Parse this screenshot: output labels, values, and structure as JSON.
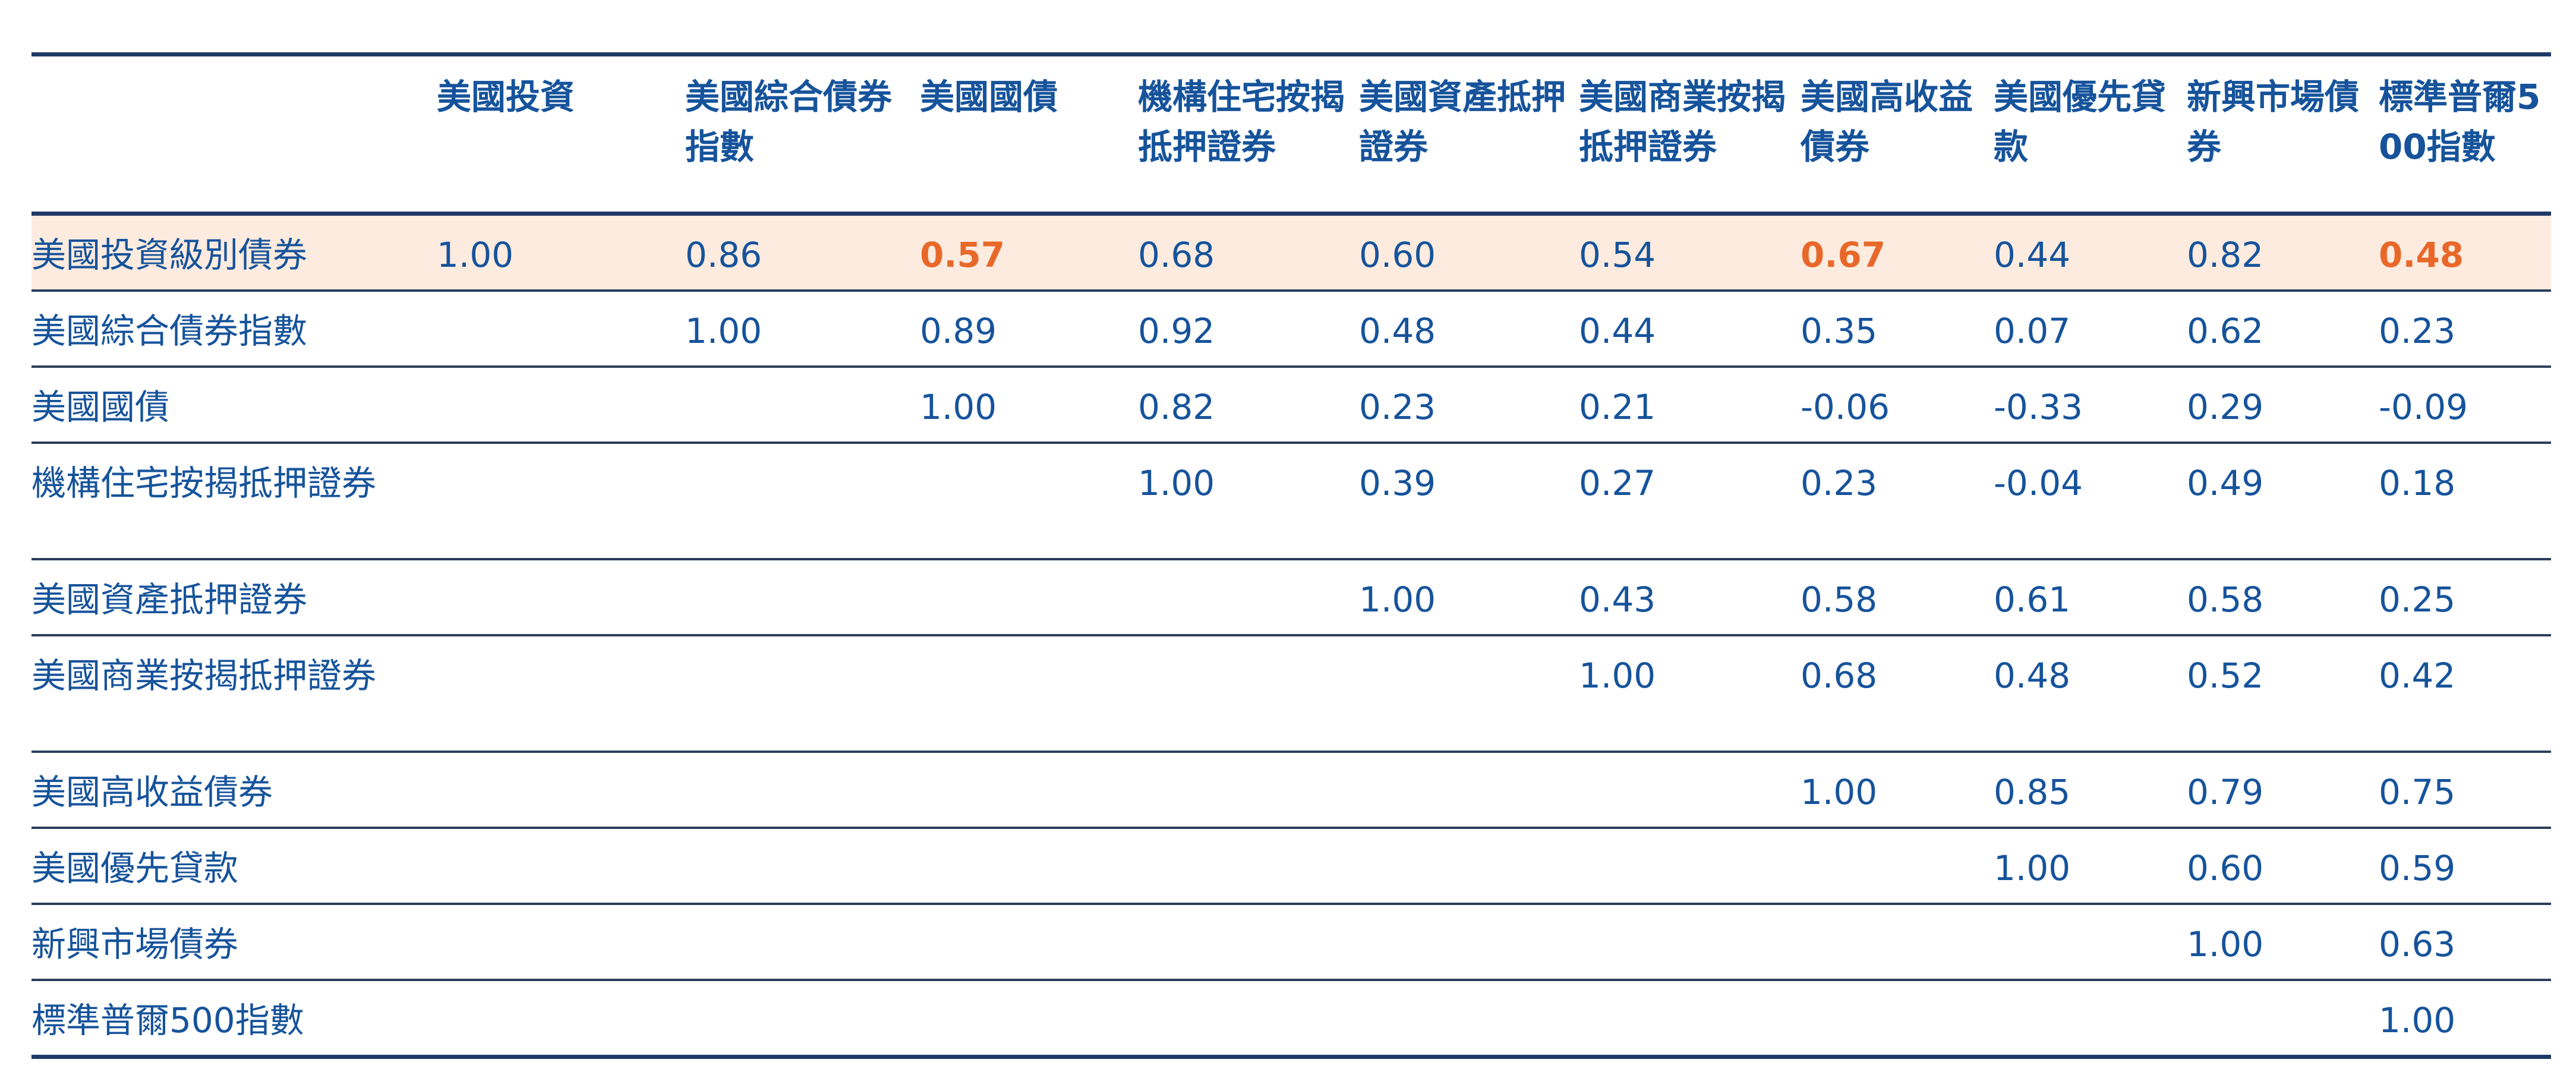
{
  "chart_data": {
    "type": "table",
    "columns": [
      "美國投資",
      "美國綜合債券指數",
      "美國國債",
      "機構住宅按揭抵押證券",
      "美國資產抵押證券",
      "美國商業按揭抵押證券",
      "美國高收益債券",
      "美國優先貸款",
      "新興市場債券",
      "標準普爾500指數"
    ],
    "rows": [
      {
        "label": "美國投資級別債券",
        "cells": [
          "1.00",
          "0.86",
          "0.57",
          "0.68",
          "0.60",
          "0.54",
          "0.67",
          "0.44",
          "0.82",
          "0.48"
        ],
        "highlighted_row": true,
        "accent_cells": [
          2,
          6,
          9
        ]
      },
      {
        "label": "美國綜合債券指數",
        "cells": [
          "",
          "1.00",
          "0.89",
          "0.92",
          "0.48",
          "0.44",
          "0.35",
          "0.07",
          "0.62",
          "0.23"
        ]
      },
      {
        "label": "美國國債",
        "cells": [
          "",
          "",
          "1.00",
          "0.82",
          "0.23",
          "0.21",
          "-0.06",
          "-0.33",
          "0.29",
          "-0.09"
        ]
      },
      {
        "label": "機構住宅按揭抵押證券",
        "cells": [
          "",
          "",
          "",
          "1.00",
          "0.39",
          "0.27",
          "0.23",
          "-0.04",
          "0.49",
          "0.18"
        ]
      },
      {
        "label": "美國資產抵押證券",
        "cells": [
          "",
          "",
          "",
          "",
          "1.00",
          "0.43",
          "0.58",
          "0.61",
          "0.58",
          "0.25"
        ]
      },
      {
        "label": "美國商業按揭抵押證券",
        "cells": [
          "",
          "",
          "",
          "",
          "",
          "1.00",
          "0.68",
          "0.48",
          "0.52",
          "0.42"
        ]
      },
      {
        "label": "美國高收益債券",
        "cells": [
          "",
          "",
          "",
          "",
          "",
          "",
          "1.00",
          "0.85",
          "0.79",
          "0.75"
        ]
      },
      {
        "label": "美國優先貸款",
        "cells": [
          "",
          "",
          "",
          "",
          "",
          "",
          "",
          "1.00",
          "0.60",
          "0.59"
        ]
      },
      {
        "label": "新興市場債券",
        "cells": [
          "",
          "",
          "",
          "",
          "",
          "",
          "",
          "",
          "1.00",
          "0.63"
        ]
      },
      {
        "label": "標準普爾500指數",
        "cells": [
          "",
          "",
          "",
          "",
          "",
          "",
          "",
          "",
          "",
          "1.00"
        ]
      }
    ],
    "colors": {
      "text": "#16539b",
      "accent": "#e8682a",
      "highlight_background": "#fdebdf",
      "rule": "#1e3a66"
    }
  }
}
